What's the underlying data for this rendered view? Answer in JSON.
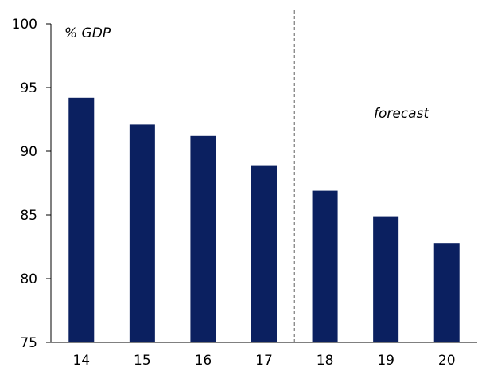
{
  "chart_data": {
    "type": "bar",
    "categories": [
      "14",
      "15",
      "16",
      "17",
      "18",
      "19",
      "20"
    ],
    "values": [
      94.2,
      92.1,
      91.2,
      88.9,
      86.9,
      84.9,
      82.8
    ],
    "ylabel": "% GDP",
    "ylim": [
      75,
      100
    ],
    "yticks": [
      75,
      80,
      85,
      90,
      95,
      100
    ],
    "annotation": "forecast",
    "forecast_divider_between": [
      "17",
      "18"
    ],
    "grid": false,
    "legend": "none",
    "colors": {
      "bar": "#0b2060",
      "axis": "#000000",
      "divider": "#8c8c8c"
    }
  }
}
